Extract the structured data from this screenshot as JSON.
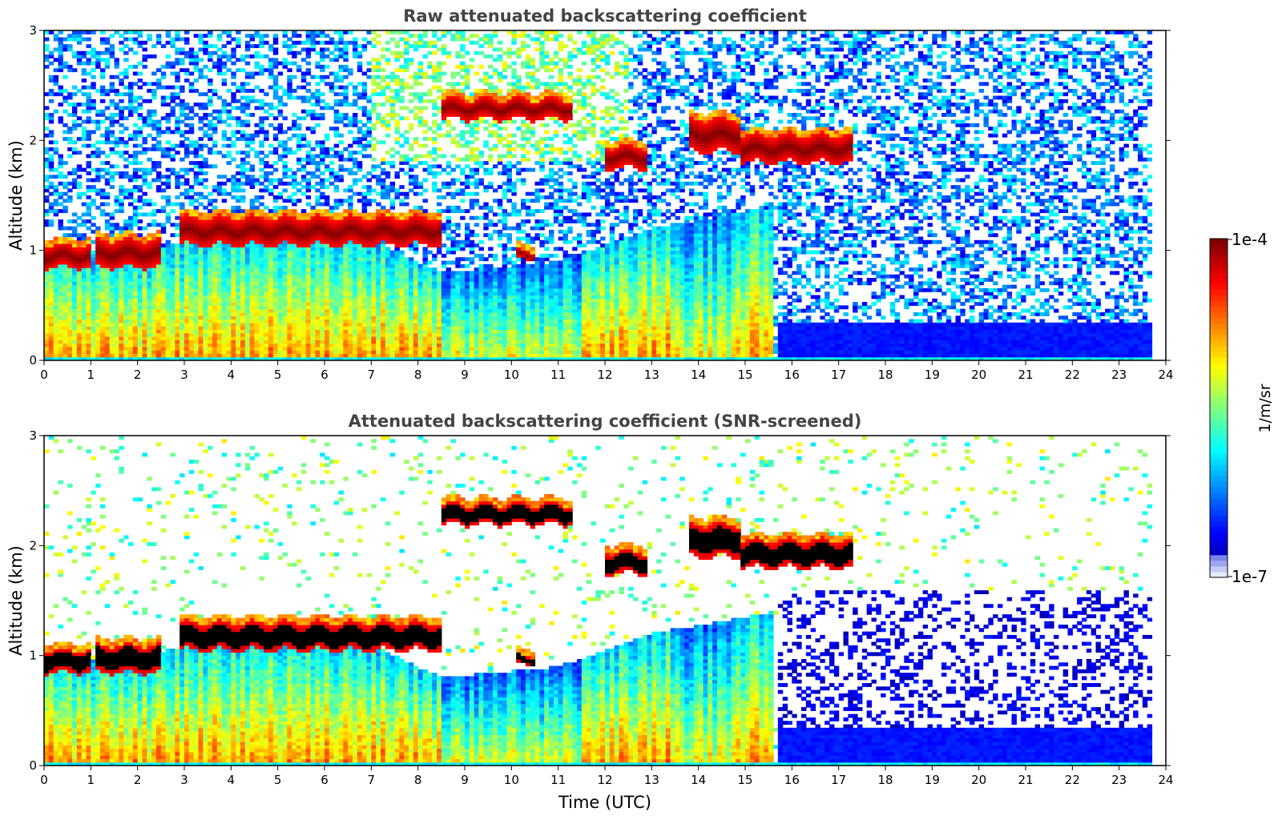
{
  "chart_data": [
    {
      "type": "heatmap",
      "title": "Raw attenuated backscattering coefficient",
      "xlabel": "",
      "ylabel": "Altitude (km)",
      "xlim": [
        0,
        24
      ],
      "ylim": [
        0,
        3
      ],
      "xticks": [
        "0",
        "1",
        "2",
        "3",
        "4",
        "5",
        "6",
        "7",
        "8",
        "9",
        "10",
        "11",
        "12",
        "13",
        "14",
        "15",
        "16",
        "17",
        "18",
        "19",
        "20",
        "21",
        "22",
        "23",
        "24"
      ],
      "yticks": [
        "0",
        "1",
        "2",
        "3"
      ],
      "screened": false,
      "features": {
        "cloud_layers": [
          {
            "x_start": 0.0,
            "x_end": 1.0,
            "y_bottom": 0.85,
            "y_top": 1.05
          },
          {
            "x_start": 1.1,
            "x_end": 2.5,
            "y_bottom": 0.85,
            "y_top": 1.1
          },
          {
            "x_start": 2.9,
            "x_end": 8.5,
            "y_bottom": 1.05,
            "y_top": 1.3
          },
          {
            "x_start": 8.5,
            "x_end": 11.3,
            "y_bottom": 2.2,
            "y_top": 2.38
          },
          {
            "x_start": 12.0,
            "x_end": 12.9,
            "y_bottom": 1.75,
            "y_top": 1.95
          },
          {
            "x_start": 13.8,
            "x_end": 14.9,
            "y_bottom": 1.9,
            "y_top": 2.2
          },
          {
            "x_start": 14.9,
            "x_end": 17.3,
            "y_bottom": 1.8,
            "y_top": 2.05
          },
          {
            "x_start": 10.1,
            "x_end": 10.5,
            "y_bottom": 0.92,
            "y_top": 1.0
          }
        ],
        "boundary_layer": [
          {
            "x": 0,
            "top": 1.0
          },
          {
            "x": 2,
            "top": 0.95
          },
          {
            "x": 3,
            "top": 1.1
          },
          {
            "x": 5,
            "top": 1.2
          },
          {
            "x": 7,
            "top": 1.1
          },
          {
            "x": 8.5,
            "top": 0.8
          },
          {
            "x": 11,
            "top": 0.9
          },
          {
            "x": 13,
            "top": 1.2
          },
          {
            "x": 15.6,
            "top": 1.4
          }
        ],
        "clear_surface_layer": {
          "x_start": 15.7,
          "x_end": 23.7,
          "y_top": 0.35
        }
      }
    },
    {
      "type": "heatmap",
      "title": "Attenuated backscattering coefficient (SNR-screened)",
      "xlabel": "Time (UTC)",
      "ylabel": "Altitude (km)",
      "xlim": [
        0,
        24
      ],
      "ylim": [
        0,
        3
      ],
      "xticks": [
        "0",
        "1",
        "2",
        "3",
        "4",
        "5",
        "6",
        "7",
        "8",
        "9",
        "10",
        "11",
        "12",
        "13",
        "14",
        "15",
        "16",
        "17",
        "18",
        "19",
        "20",
        "21",
        "22",
        "23",
        "24"
      ],
      "yticks": [
        "0",
        "1",
        "2",
        "3"
      ],
      "screened": true
    }
  ],
  "colorbar": {
    "colormap": "jet",
    "min_label": "1e-7",
    "max_label": "1e-4",
    "label": "1/m/sr",
    "saturated_color": "#000000"
  }
}
